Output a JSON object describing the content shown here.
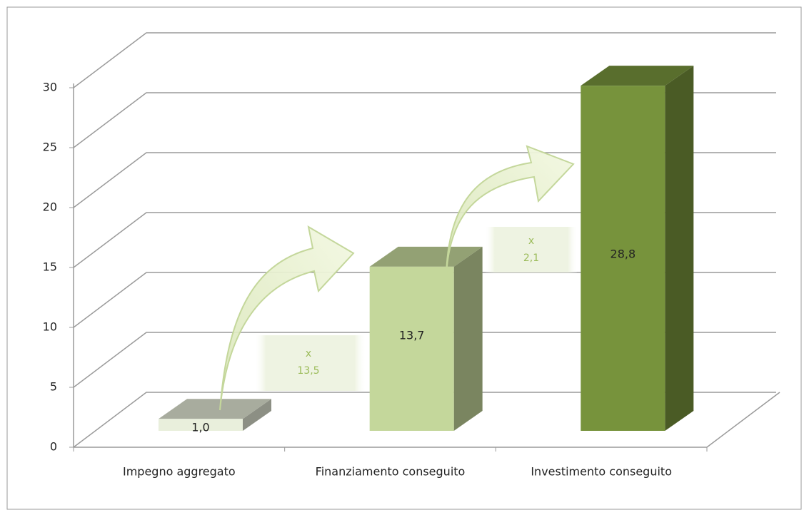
{
  "chart_data": {
    "type": "bar3d",
    "categories": [
      "Impegno aggregato",
      "Finanziamento conseguito",
      "Investimento conseguito"
    ],
    "values": [
      1.0,
      13.7,
      28.8
    ],
    "value_labels": [
      "1,0",
      "13,7",
      "28,8"
    ],
    "colors": [
      "#e9efdc",
      "#c4d79b",
      "#77933c"
    ],
    "ylim": [
      0,
      30
    ],
    "yticks": [
      0,
      5,
      10,
      15,
      20,
      25,
      30
    ],
    "grid": true,
    "annotations": [
      {
        "lines": [
          "x",
          "13,5"
        ]
      },
      {
        "lines": [
          "x",
          "2,1"
        ]
      }
    ]
  }
}
